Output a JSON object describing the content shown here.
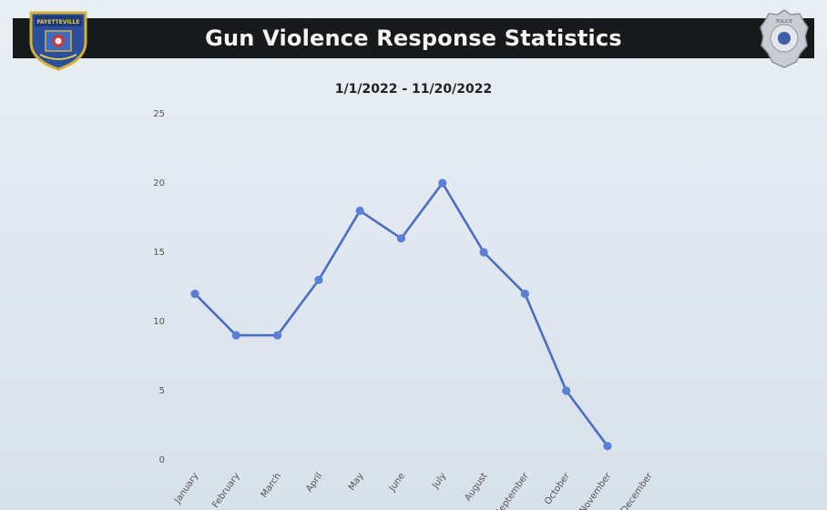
{
  "header": {
    "title": "Gun Violence Response Statistics",
    "left_logo_text": "FAYETTEVILLE",
    "right_logo_text": "POLICE"
  },
  "colors": {
    "banner": "#18191b",
    "line": "#4a6fc0",
    "marker": "#5b7fd6"
  },
  "chart_data": {
    "type": "line",
    "title": "",
    "subtitle": "1/1/2022 - 11/20/2022",
    "xlabel": "",
    "ylabel": "",
    "categories": [
      "January",
      "February",
      "March",
      "April",
      "May",
      "June",
      "July",
      "August",
      "September",
      "October",
      "November",
      "December"
    ],
    "series": [
      {
        "values": [
          12,
          9,
          9,
          13,
          18,
          16,
          20,
          15,
          12,
          5,
          1,
          null
        ]
      }
    ],
    "ylim": [
      0,
      25
    ],
    "yticks": [
      "0",
      "5",
      "10",
      "15",
      "20",
      "25"
    ],
    "grid": false,
    "legend": "none"
  }
}
